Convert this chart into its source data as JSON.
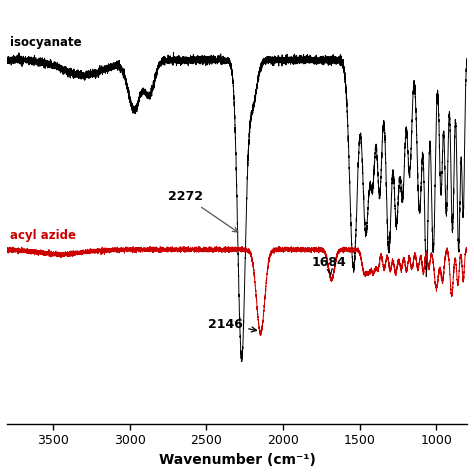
{
  "xlabel": "Wavenumber (cm⁻¹)",
  "xmin": 3800,
  "xmax": 800,
  "background_color": "#ffffff",
  "label_isocyanate": "isocyanate",
  "label_acylazide": "acyl azide",
  "annotation_2272": "2272",
  "annotation_2146": "2146",
  "annotation_1684": "1684",
  "xticks": [
    3500,
    3000,
    2500,
    2000,
    1500,
    1000
  ],
  "black_color": "#000000",
  "red_color": "#cc0000",
  "iso_baseline": 0.88,
  "azide_baseline": 0.38
}
